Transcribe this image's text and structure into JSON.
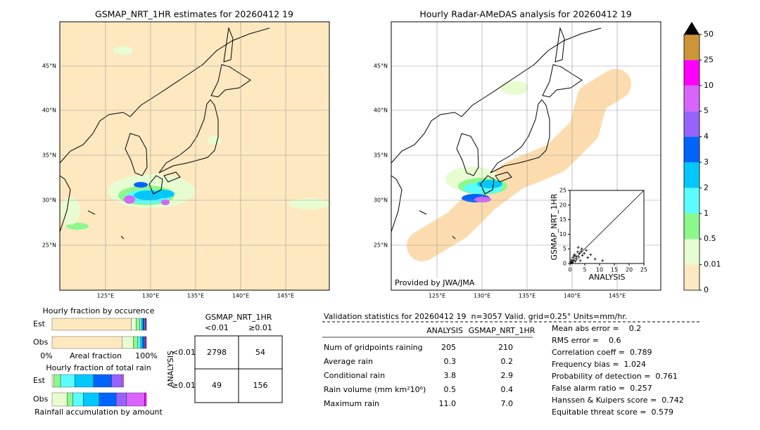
{
  "left_map": {
    "title": "GSMAP_NRT_1HR estimates for 20260412 19",
    "lat_labels": [
      "45°N",
      "40°N",
      "35°N",
      "30°N",
      "25°N"
    ],
    "lon_labels": [
      "125°E",
      "130°E",
      "135°E",
      "140°E",
      "145°E"
    ]
  },
  "right_map": {
    "title": "Hourly Radar-AMeDAS analysis for 20260412 19",
    "lat_labels": [
      "45°N",
      "40°N",
      "35°N",
      "30°N",
      "25°N"
    ],
    "lon_labels": [
      "125°E",
      "130°E",
      "135°E",
      "140°E",
      "145°E"
    ],
    "credit": "Provided by JWA/JMA"
  },
  "scatter": {
    "type": "scatter",
    "xlabel": "ANALYSIS",
    "ylabel": "GSMAP_NRT_1HR",
    "xlim": [
      0,
      25
    ],
    "ylim": [
      0,
      25
    ],
    "xticks": [
      0,
      5,
      10,
      15,
      20,
      25
    ],
    "yticks": [
      0,
      5,
      10,
      15,
      20,
      25
    ],
    "x": [
      0.3,
      0.5,
      0.8,
      1.0,
      1.2,
      1.5,
      1.8,
      2.0,
      2.3,
      2.6,
      3.0,
      3.2,
      3.5,
      4.0,
      4.2,
      4.8,
      5.5,
      6.0,
      7.0,
      8.5,
      11.0,
      0.6,
      1.4,
      2.8,
      3.8
    ],
    "y": [
      0.5,
      1.2,
      0.4,
      2.0,
      1.0,
      3.0,
      0.8,
      2.5,
      1.5,
      4.0,
      2.2,
      3.5,
      1.0,
      5.0,
      2.8,
      3.5,
      4.5,
      2.0,
      3.0,
      1.5,
      1.0,
      0.2,
      2.6,
      5.5,
      4.2
    ]
  },
  "colorbar": {
    "labels": [
      "0",
      "0.01",
      "0.5",
      "1",
      "2",
      "3",
      "4",
      "5",
      "10",
      "25",
      "50"
    ],
    "colors": [
      "#fee8c0",
      "#e8fcd2",
      "#8cf88c",
      "#5cfcfc",
      "#00c8fc",
      "#0064fc",
      "#9664fc",
      "#d864fc",
      "#fc00fc",
      "#cc9638"
    ]
  },
  "fraction_occurrence": {
    "title": "Hourly fraction by occurence",
    "rows": [
      "Est",
      "Obs"
    ],
    "axis_left": "0%",
    "axis_mid": "Areal fraction",
    "axis_right": "100%",
    "est": [
      0.84,
      0.05,
      0.04,
      0.02,
      0.015,
      0.012,
      0.01,
      0.008,
      0.004,
      0.001
    ],
    "obs": [
      0.74,
      0.12,
      0.05,
      0.03,
      0.02,
      0.015,
      0.01,
      0.008,
      0.005,
      0.002
    ]
  },
  "fraction_total": {
    "title": "Hourly fraction of total rain",
    "rows": [
      "Est",
      "Obs"
    ],
    "footer": "Rainfall accumulation by amount",
    "est": [
      0,
      0.02,
      0.07,
      0.15,
      0.2,
      0.19,
      0.11,
      0.02,
      0,
      0
    ],
    "obs": [
      0,
      0.16,
      0.06,
      0.11,
      0.17,
      0.18,
      0.11,
      0.19,
      0.02,
      0
    ]
  },
  "contingency": {
    "title": "GSMAP_NRT_1HR",
    "col_headers": [
      "<0.01",
      "≥0.01"
    ],
    "row_label": "ANALYSIS",
    "row_headers": [
      "<0.01",
      "≥0.01"
    ],
    "cells": [
      [
        "2798",
        "54"
      ],
      [
        "49",
        "156"
      ]
    ]
  },
  "validation": {
    "header": "Validation statistics for 20260412 19  n=3057 Valid. grid=0.25° Units=mm/hr.",
    "columns": [
      "ANALYSIS",
      "GSMAP_NRT_1HR"
    ],
    "rows": [
      [
        "Num of gridpoints raining",
        "205",
        "210"
      ],
      [
        "Average rain",
        "0.3",
        "0.2"
      ],
      [
        "Conditional rain",
        "3.8",
        "2.9"
      ],
      [
        "Rain volume (mm km²10⁶)",
        "0.5",
        "0.4"
      ],
      [
        "Maximum rain",
        "11.0",
        "7.0"
      ]
    ],
    "scores": [
      "Mean abs error =    0.2",
      "RMS error =    0.6",
      "Correlation coeff =  0.789",
      "Frequency bias =  1.024",
      "Probability of detection =  0.761",
      "False alarm ratio =  0.257",
      "Hanssen & Kuipers score =  0.742",
      "Equitable threat score =  0.579"
    ]
  }
}
